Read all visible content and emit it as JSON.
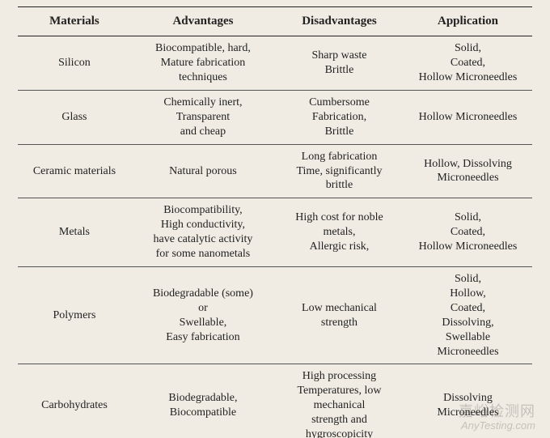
{
  "table": {
    "background_color": "#f0ece3",
    "text_color": "#222222",
    "border_color": "#222222",
    "row_border_color": "#555555",
    "font_family": "Palatino Linotype, Book Antiqua, Palatino, Georgia, serif",
    "header_fontsize_pt": 11,
    "cell_fontsize_pt": 10.5,
    "col_widths_pct": [
      22,
      28,
      25,
      25
    ],
    "columns": [
      "Materials",
      "Advantages",
      "Disadvantages",
      "Application"
    ],
    "rows": [
      {
        "material": "Silicon",
        "advantages": "Biocompatible, hard,\nMature fabrication\ntechniques",
        "disadvantages": "Sharp waste\nBrittle",
        "application": "Solid,\nCoated,\nHollow Microneedles"
      },
      {
        "material": "Glass",
        "advantages": "Chemically inert,\nTransparent\nand cheap",
        "disadvantages": "Cumbersome\nFabrication,\nBrittle",
        "application": "Hollow Microneedles"
      },
      {
        "material": "Ceramic materials",
        "advantages": "Natural porous",
        "disadvantages": "Long fabrication\nTime, significantly\nbrittle",
        "application": "Hollow, Dissolving\nMicroneedles"
      },
      {
        "material": "Metals",
        "advantages": "Biocompatibility,\nHigh conductivity,\nhave catalytic activity\nfor some nanometals",
        "disadvantages": "High cost for noble\nmetals,\nAllergic risk,",
        "application": "Solid,\nCoated,\nHollow Microneedles"
      },
      {
        "material": "Polymers",
        "advantages": "Biodegradable (some)\nor\nSwellable,\nEasy fabrication",
        "disadvantages": "Low mechanical\nstrength",
        "application": "Solid,\nHollow,\nCoated,\nDissolving,\nSwellable\nMicroneedles"
      },
      {
        "material": "Carbohydrates",
        "advantages": "Biodegradable,\nBiocompatible",
        "disadvantages": "High processing\nTemperatures, low\nmechanical\nstrength and\nhygroscopicity",
        "application": "Dissolving\nMicroneedles"
      }
    ]
  },
  "watermark": {
    "line1": "嘉峪检测网",
    "line2": "AnyTesting.com",
    "color": "rgba(40,40,40,0.22)"
  }
}
